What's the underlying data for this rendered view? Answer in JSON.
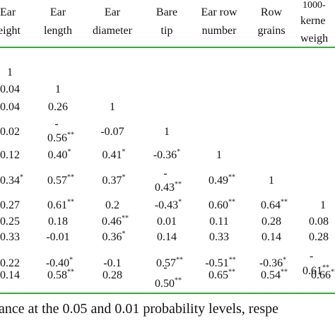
{
  "header": {
    "c0": [
      "Ear",
      "eight"
    ],
    "c1": [
      "Ear",
      "length"
    ],
    "c2": [
      "Ear",
      "diameter"
    ],
    "c3": [
      "Bare",
      "tip"
    ],
    "c4": [
      "Ear row",
      "number"
    ],
    "c5": [
      "Row",
      "grains"
    ],
    "c6": [
      "1000-",
      "kerne",
      "weigh"
    ]
  },
  "cells": {
    "r1c0": "1",
    "r2c0": "0.04",
    "r2c1": "1",
    "r3c0": "0.04",
    "r3c1": "0.26",
    "r3c2": "1",
    "r4c0": "0.02",
    "r4c1": "-",
    "r4c1b": "0.56",
    "r4c1s": "**",
    "r4c2": "-0.07",
    "r4c3": "1",
    "r5c0": "0.12",
    "r5c1": "0.40",
    "r5c1s": "*",
    "r5c2": "0.41",
    "r5c2s": "*",
    "r5c3": "-0.36",
    "r5c3s": "*",
    "r5c4": "1",
    "r6c0": "0.34",
    "r6c0s": "*",
    "r6c1": "0.57",
    "r6c1s": "**",
    "r6c2": "0.37",
    "r6c2s": "*",
    "r6c3": "-",
    "r6c3b": "0.43",
    "r6c3s": "**",
    "r6c4": "0.49",
    "r6c4s": "**",
    "r6c5": "1",
    "r7c0": "0.27",
    "r7c1": "0.61",
    "r7c1s": "**",
    "r7c2": "0.2",
    "r7c3": "-0.43",
    "r7c3s": "*",
    "r7c4": "0.60",
    "r7c4s": "**",
    "r7c5": "0.64",
    "r7c5s": "**",
    "r7c6": "1",
    "r8c0": "0.25",
    "r8c1": "0.18",
    "r8c2": "0.46",
    "r8c2s": "**",
    "r8c3": "0.01",
    "r8c4": "0.11",
    "r8c5": "0.28",
    "r8c6": "0.08",
    "r9c0": "0.33",
    "r9c1": "-0.01",
    "r9c2": "0.36",
    "r9c2s": "*",
    "r9c3": "0.14",
    "r9c4": "0.33",
    "r9c5": "0.14",
    "r9c6": "0.28",
    "r10c0": "0.22",
    "r10c1": "-0.40",
    "r10c1s": "*",
    "r10c2": "-0.1",
    "r10c3": "0.57",
    "r10c3s": "**",
    "r10c4": "-0.51",
    "r10c4s": "**",
    "r10c5": "-0.36",
    "r10c5s": "*",
    "r10c6": "-",
    "r10c6b": "0.61",
    "r10c6s": "**",
    "r11c0": "0.14",
    "r11c1": "0.58",
    "r11c1s": "**",
    "r11c2": "0.28",
    "r11c3": "-",
    "r11c3b": "0.50",
    "r11c3s": "**",
    "r11c4": "0.65",
    "r11c4s": "**",
    "r11c5": "0.54",
    "r11c5s": "**",
    "r11c6": "0.66",
    "r11c6s": "**"
  },
  "footnote": "ance at the 0.05 and 0.01 probability levels, respe",
  "colors": {
    "rule": "#3aaa3a"
  }
}
